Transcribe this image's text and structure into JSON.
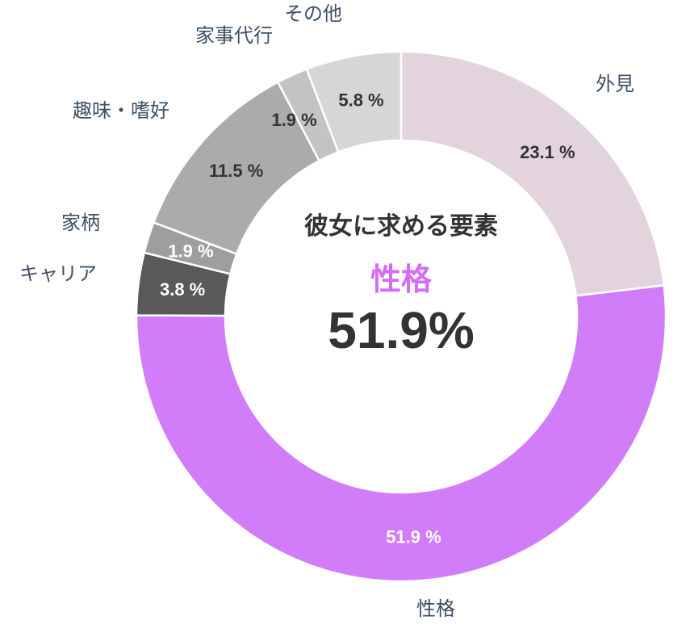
{
  "chart_data": {
    "type": "pie",
    "variant": "donut",
    "title": "彼女に求める要素",
    "start_angle": "12 o'clock, clockwise",
    "categories": [
      "外見",
      "性格",
      "キャリア",
      "家柄",
      "趣味・嗜好",
      "家事代行",
      "その他"
    ],
    "values": [
      23.1,
      51.9,
      3.8,
      1.9,
      11.5,
      1.9,
      5.8
    ],
    "value_labels": [
      "23.1 %",
      "51.9 %",
      "3.8 %",
      "1.9 %",
      "11.5 %",
      "1.9 %",
      "5.8 %"
    ],
    "colors": [
      "#e2d3dc",
      "#d17df9",
      "#595959",
      "#9e9e9e",
      "#ababab",
      "#c3c3c3",
      "#d6d6d6"
    ],
    "label_colors": [
      "#333333",
      "#ffffff",
      "#ffffff",
      "#ffffff",
      "#333333",
      "#333333",
      "#333333"
    ],
    "legend": "none (category labels placed outside slices)",
    "center": {
      "title": "彼女に求める要素",
      "highlight_category": "性格",
      "highlight_value": "51.9%",
      "highlight_color": "#d56cf5"
    }
  },
  "center": {
    "title": "彼女に求める要素",
    "category": "性格",
    "value": "51.9%"
  }
}
